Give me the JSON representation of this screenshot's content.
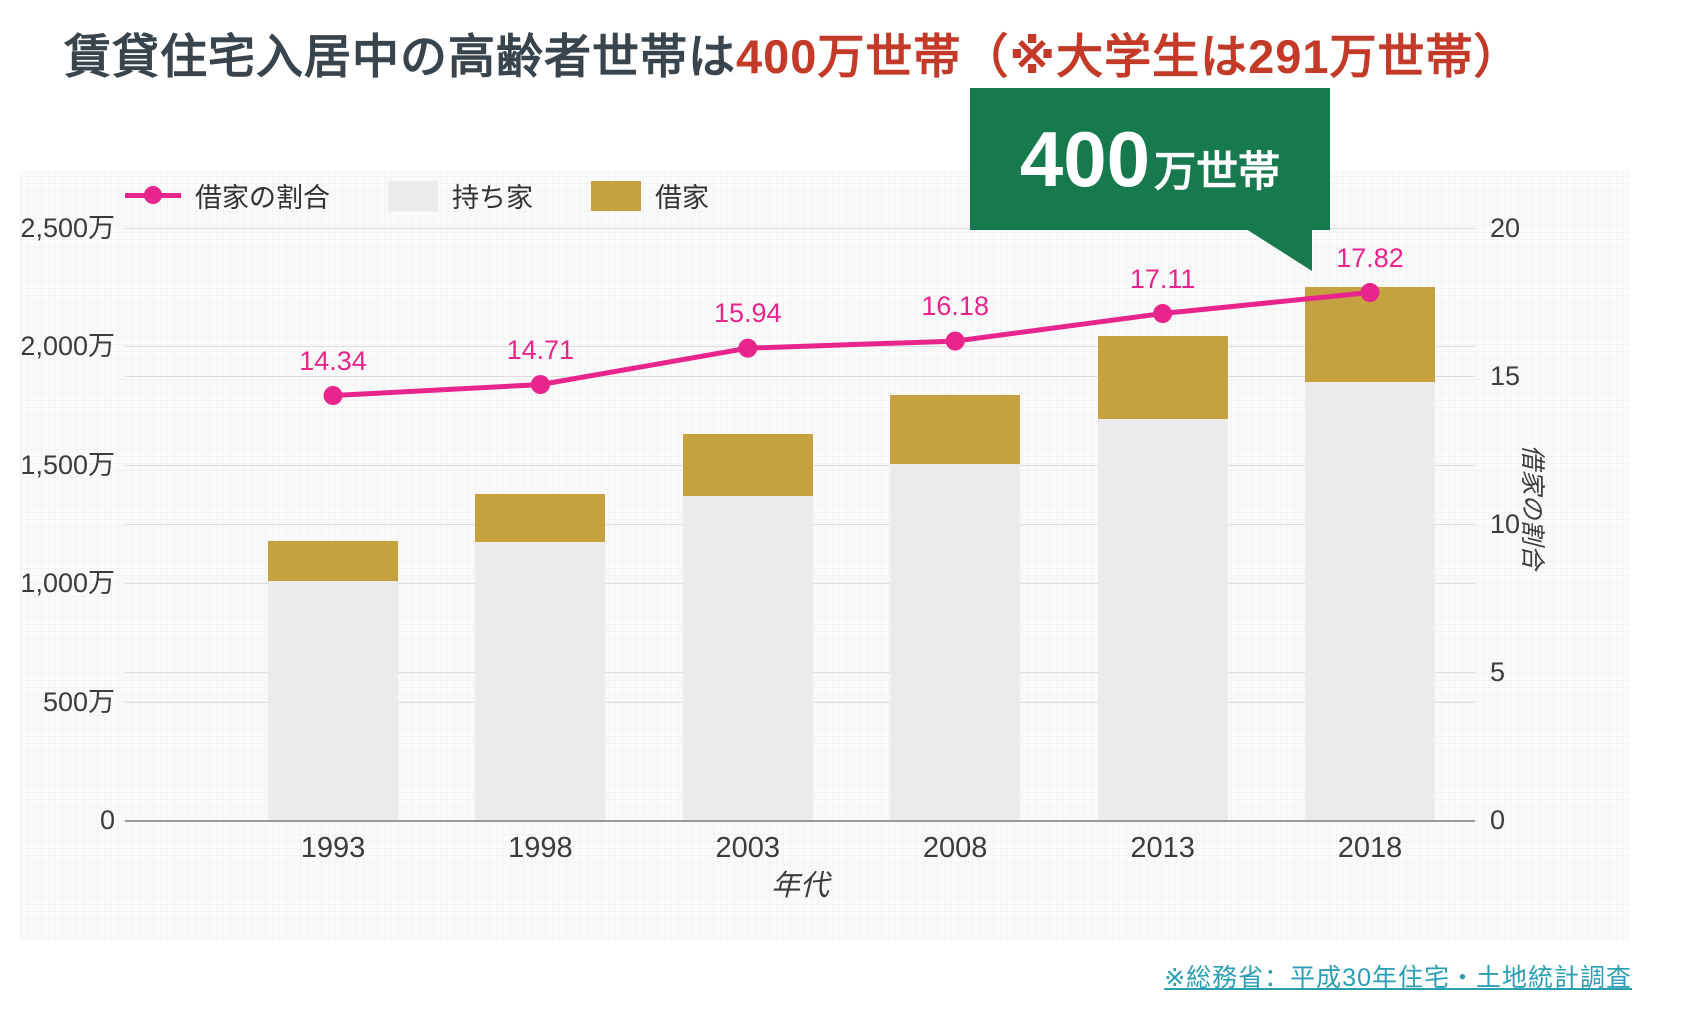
{
  "title": {
    "part1": "賃貸住宅入居中の高齢者世帯は",
    "part2": "400万世帯",
    "part3": "（※大学生は291万世帯）"
  },
  "callout": {
    "number": "400",
    "unit": "万世帯"
  },
  "source": "※総務省：平成30年住宅・土地統計調査",
  "colors": {
    "title_dark": "#39444d",
    "title_red": "#c43a28",
    "callout_green": "#177a4e",
    "line_pink": "#e8258c",
    "bar_gold": "#c6a13f",
    "bar_gray": "#ebebeb",
    "source_teal": "#2b9eb3"
  },
  "chart_data": {
    "type": "bar+line",
    "categories": [
      "1993",
      "1998",
      "2003",
      "2008",
      "2013",
      "2018"
    ],
    "bar_series": [
      {
        "name": "持ち家",
        "color": "#ebebeb",
        "values": [
          1010,
          1175,
          1370,
          1505,
          1695,
          1850
        ]
      },
      {
        "name": "借家",
        "color": "#c6a13f",
        "values": [
          170,
          200,
          260,
          290,
          350,
          400
        ]
      }
    ],
    "line_series": {
      "name": "借家の割合",
      "color": "#e8258c",
      "values": [
        14.34,
        14.71,
        15.94,
        16.18,
        17.11,
        17.82
      ]
    },
    "left_axis": {
      "ticks": [
        "0",
        "500万",
        "1,000万",
        "1,500万",
        "2,000万",
        "2,500万"
      ],
      "values": [
        0,
        500,
        1000,
        1500,
        2000,
        2500
      ],
      "max": 2500
    },
    "right_axis": {
      "ticks": [
        "0",
        "5",
        "10",
        "15",
        "20"
      ],
      "values": [
        0,
        5,
        10,
        15,
        20
      ],
      "max": 20,
      "label": "借家の割合"
    },
    "xlabel": "年代",
    "grid": true,
    "legend_position": "top-left"
  }
}
